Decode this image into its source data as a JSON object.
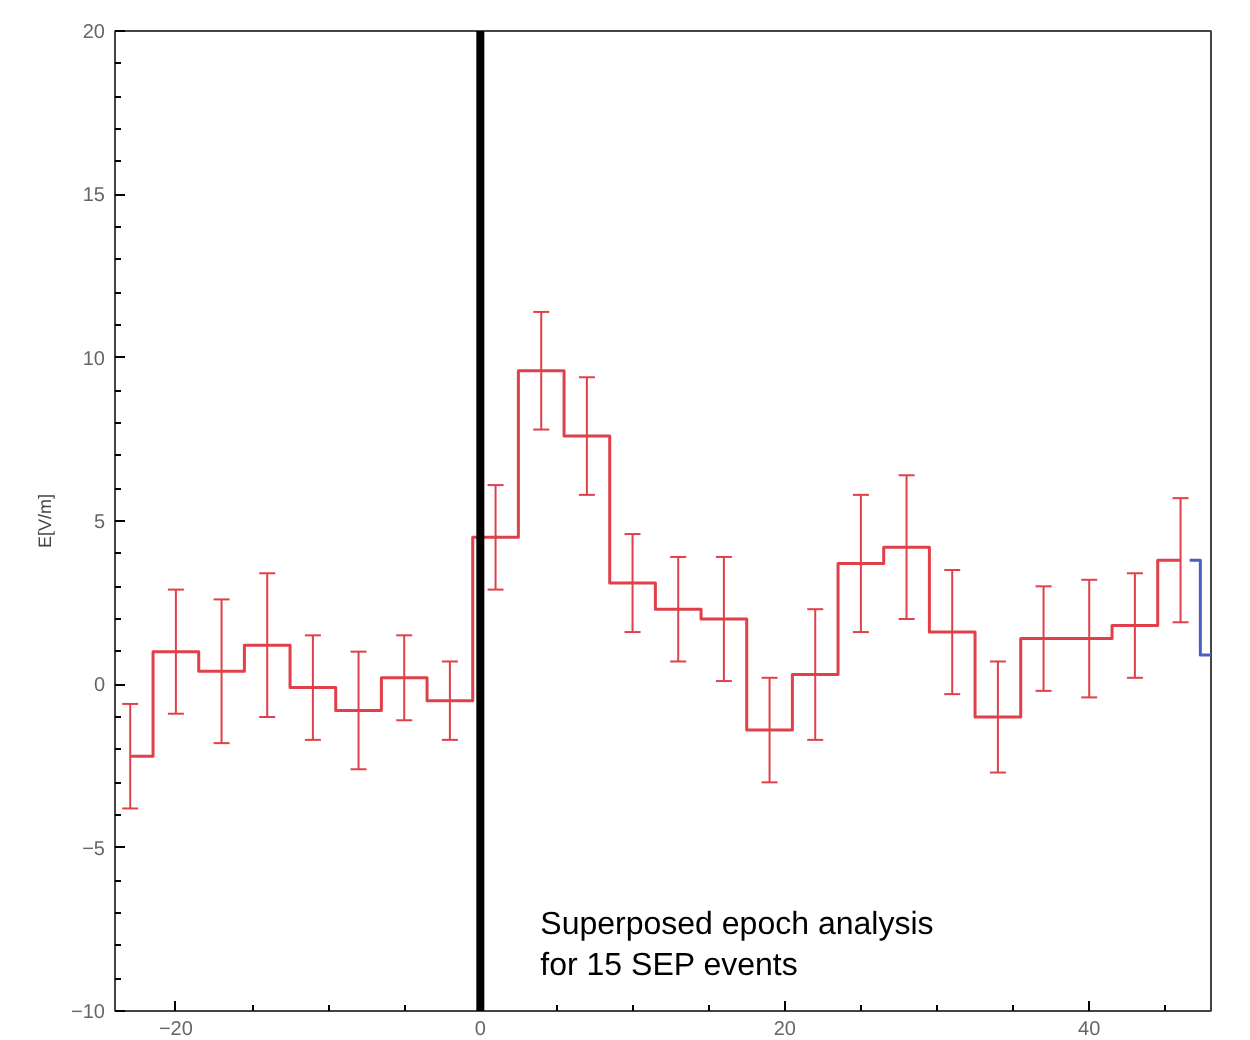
{
  "chart_data": {
    "type": "step",
    "ylabel": "E[V/m]",
    "xlim": [
      -24,
      48
    ],
    "xticks": [
      -20,
      0,
      20,
      40
    ],
    "ylim": [
      -10,
      20
    ],
    "yticks": [
      -10,
      -5,
      0,
      5,
      10,
      15,
      20
    ],
    "grid": false,
    "marker": "none",
    "line_style": "solid",
    "series": [
      {
        "color": "#e0404a",
        "x": [
          -23,
          -20,
          -17,
          -14,
          -11,
          -8,
          -5,
          -2,
          1,
          4,
          7,
          10,
          13,
          16,
          19,
          22,
          25,
          28,
          31,
          34,
          37,
          40,
          43,
          46
        ],
        "values": [
          -2.2,
          1.0,
          0.4,
          1.2,
          -0.1,
          -0.8,
          0.2,
          -0.5,
          4.5,
          9.6,
          7.6,
          3.1,
          2.3,
          2.0,
          -1.4,
          0.3,
          3.7,
          4.2,
          1.6,
          -1.0,
          1.4,
          1.4,
          1.8,
          3.8
        ],
        "errors": [
          1.6,
          1.9,
          2.2,
          2.2,
          1.6,
          1.8,
          1.3,
          1.2,
          1.6,
          1.8,
          1.8,
          1.5,
          1.6,
          1.9,
          1.6,
          2.0,
          2.1,
          2.2,
          1.9,
          1.7,
          1.6,
          1.8,
          1.6,
          1.9
        ]
      },
      {
        "color": "#4a5fc0",
        "x": [
          46.6,
          48
        ],
        "values": [
          3.8,
          0.9
        ]
      }
    ],
    "ref_lines": [
      {
        "axis": "x",
        "value": 0,
        "color": "#000000",
        "line_style": "solid"
      }
    ],
    "annotations": [
      "Superposed epoch analysis\nfor 15 SEP events"
    ]
  }
}
